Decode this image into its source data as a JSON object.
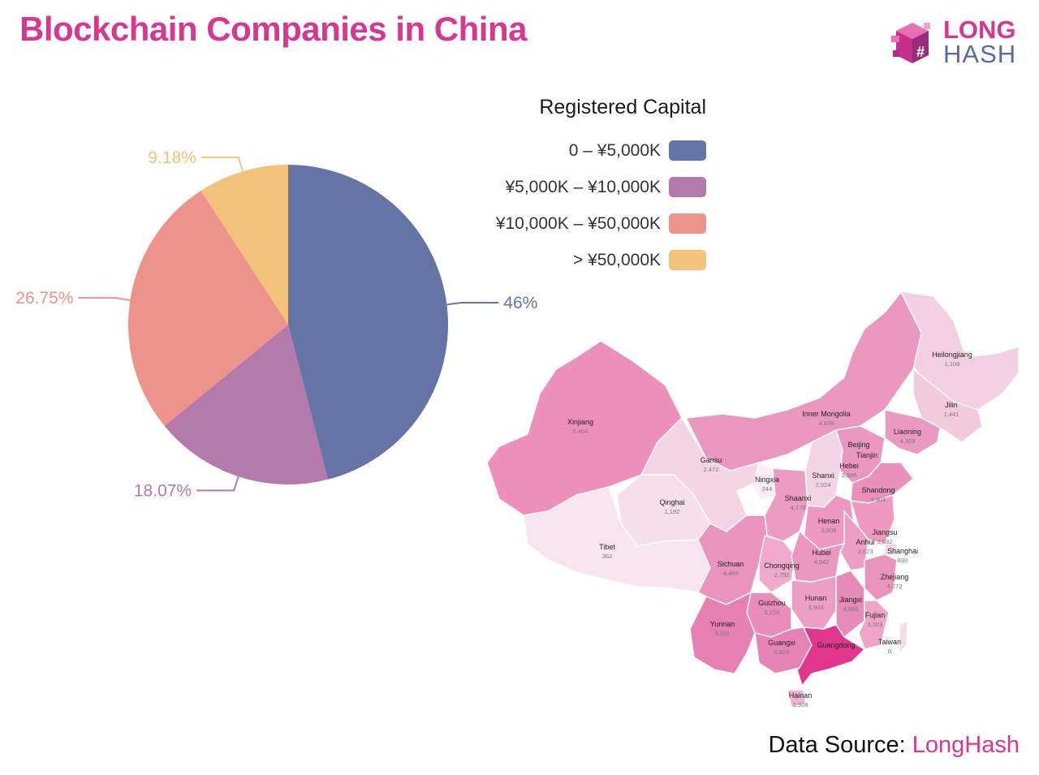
{
  "title": "Blockchain Companies in China",
  "logo": {
    "line1": "LONG",
    "line2": "HASH"
  },
  "legend": {
    "title": "Registered Capital"
  },
  "chart_data": {
    "type": "pie",
    "title": "Blockchain Companies in China",
    "categories": [
      "0 – ¥5,000K",
      "¥5,000K – ¥10,000K",
      "¥10,000K – ¥50,000K",
      "> ¥50,000K"
    ],
    "values": [
      46,
      18.07,
      26.75,
      9.18
    ],
    "data_labels": [
      "46%",
      "18.07%",
      "26.75%",
      "9.18%"
    ],
    "colors": [
      "#6474a4",
      "#b47aab",
      "#ee938c",
      "#f3c27a"
    ],
    "start_angle": "12 o'clock",
    "direction": "clockwise",
    "legend_position": "top-right"
  },
  "map": {
    "provinces": [
      {
        "name": "Heilongjiang",
        "value": "1,108"
      },
      {
        "name": "Jilin",
        "value": "1,441"
      },
      {
        "name": "Liaoning",
        "value": "4,309"
      },
      {
        "name": "Inner Mongolia",
        "value": "4,839"
      },
      {
        "name": "Xinjiang",
        "value": "5,404"
      },
      {
        "name": "Beijing",
        "value": ""
      },
      {
        "name": "Tianjin",
        "value": ""
      },
      {
        "name": "Hebei",
        "value": "3,986"
      },
      {
        "name": "Gansu",
        "value": "2,472"
      },
      {
        "name": "Ningxia",
        "value": "244"
      },
      {
        "name": "Shanxi",
        "value": "2,024"
      },
      {
        "name": "Shandong",
        "value": "4,801"
      },
      {
        "name": "Qinghai",
        "value": "1,192"
      },
      {
        "name": "Shaanxi",
        "value": "4,178"
      },
      {
        "name": "Henan",
        "value": "3,808"
      },
      {
        "name": "Jiangsu",
        "value": "3,032"
      },
      {
        "name": "Anhui",
        "value": "2,623"
      },
      {
        "name": "Shanghai",
        "value": "830"
      },
      {
        "name": "Tibet",
        "value": "362"
      },
      {
        "name": "Sichuan",
        "value": "4,484"
      },
      {
        "name": "Chongqing",
        "value": "2,792"
      },
      {
        "name": "Hubei",
        "value": "4,042"
      },
      {
        "name": "Zhejiang",
        "value": "4,272"
      },
      {
        "name": "Hunan",
        "value": "3,903"
      },
      {
        "name": "Jiangxi",
        "value": "4,996"
      },
      {
        "name": "Guizhou",
        "value": "5,216"
      },
      {
        "name": "Fujian",
        "value": "3,003"
      },
      {
        "name": "Yunnan",
        "value": "5,511"
      },
      {
        "name": "Guangxi",
        "value": "5,823"
      },
      {
        "name": "Guangdong",
        "value": ""
      },
      {
        "name": "Taiwan",
        "value": "0"
      },
      {
        "name": "Hainan",
        "value": "2,908"
      }
    ]
  },
  "source": {
    "label": "Data Source:",
    "name": "LongHash"
  }
}
